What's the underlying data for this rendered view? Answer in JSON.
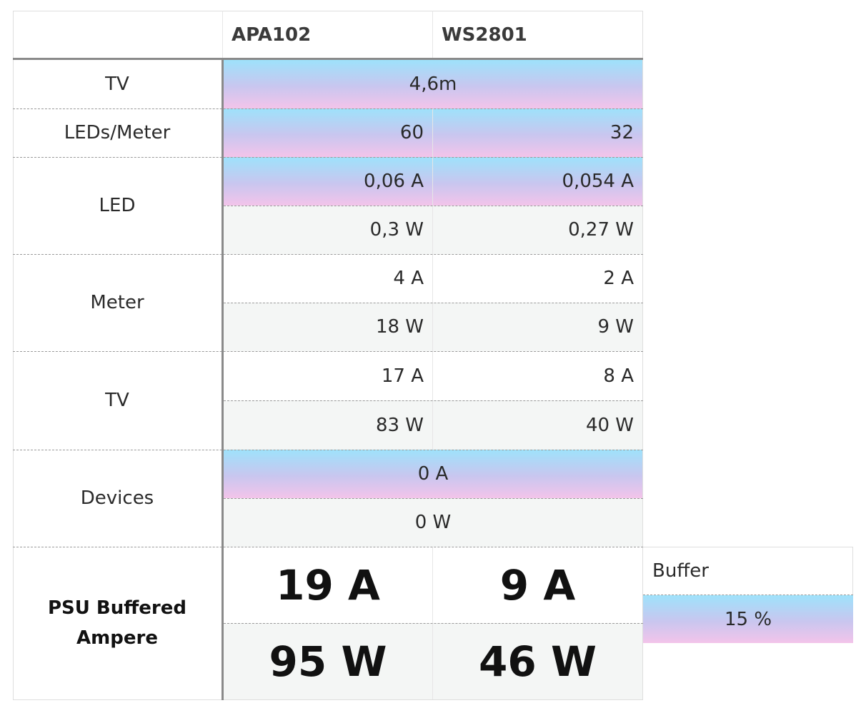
{
  "header": {
    "col1": "APA102",
    "col2": "WS2801"
  },
  "rows": {
    "tv_length": {
      "label": "TV",
      "value": "4,6m"
    },
    "leds_per_meter": {
      "label": "LEDs/Meter",
      "apa": "60",
      "ws": "32"
    },
    "led": {
      "label": "LED",
      "apa_a": "0,06 A",
      "ws_a": "0,054 A",
      "apa_w": "0,3 W",
      "ws_w": "0,27 W"
    },
    "meter": {
      "label": "Meter",
      "apa_a": "4 A",
      "ws_a": "2 A",
      "apa_w": "18 W",
      "ws_w": "9 W"
    },
    "tv": {
      "label": "TV",
      "apa_a": "17 A",
      "ws_a": "8 A",
      "apa_w": "83 W",
      "ws_w": "40 W"
    },
    "devices": {
      "label": "Devices",
      "a": "0 A",
      "w": "0 W"
    },
    "psu": {
      "label_line1": "PSU Buffered",
      "label_line2": "Ampere",
      "apa_a": "19 A",
      "ws_a": "9 A",
      "apa_w": "95 W",
      "ws_w": "46 W"
    }
  },
  "buffer": {
    "label": "Buffer",
    "value": "15 %"
  },
  "colors": {
    "gradient_top": "#9ee2fb",
    "gradient_bottom": "#f3c4ea",
    "grey_cell": "#f4f6f5",
    "rule": "#8a8a8a"
  }
}
